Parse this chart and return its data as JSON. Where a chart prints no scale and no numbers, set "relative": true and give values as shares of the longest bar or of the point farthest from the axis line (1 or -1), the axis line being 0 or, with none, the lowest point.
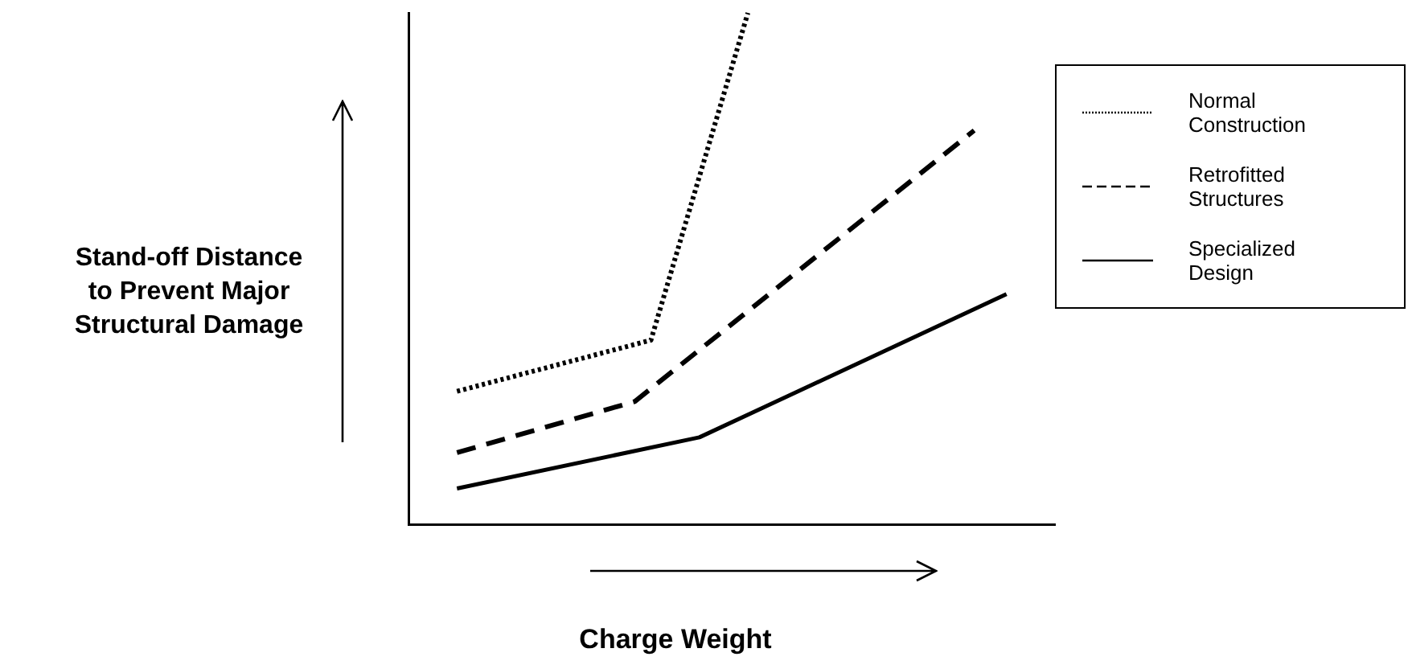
{
  "chart_data": {
    "type": "line",
    "relative": true,
    "xlabel": "Charge Weight",
    "ylabel": "Stand-off Distance to Prevent Major Structural Damage",
    "ylim": [
      0,
      1
    ],
    "grid": false,
    "legend": "right",
    "marker": "none",
    "categories": [
      null,
      null,
      null,
      null,
      null,
      null,
      null,
      null,
      null,
      null,
      null,
      null,
      null,
      null,
      null,
      null,
      null,
      null,
      null,
      null,
      null,
      null,
      null,
      null,
      null,
      null,
      null,
      null,
      null,
      null,
      null,
      null,
      null,
      null,
      null,
      null,
      null,
      null,
      null,
      null,
      null
    ],
    "series": [
      {
        "name": "Normal Construction",
        "color": "#000000",
        "line_style": "dotted",
        "values": [
          null,
          null,
          null,
          0.26,
          null,
          null,
          null,
          null,
          null,
          null,
          null,
          null,
          null,
          null,
          null,
          0.36,
          null,
          null,
          null,
          null,
          null,
          1,
          null,
          null,
          null,
          null,
          null,
          null,
          null,
          null,
          null,
          null,
          null,
          null,
          null,
          null,
          null,
          null,
          null,
          null,
          null
        ]
      },
      {
        "name": "Retrofitted Structures",
        "color": "#000000",
        "line_style": "dashed",
        "values": [
          null,
          null,
          null,
          0.14,
          null,
          null,
          null,
          null,
          null,
          null,
          null,
          null,
          null,
          null,
          0.24,
          null,
          null,
          null,
          null,
          null,
          null,
          null,
          null,
          null,
          null,
          null,
          null,
          null,
          null,
          null,
          null,
          null,
          null,
          null,
          null,
          0.77,
          null,
          null,
          null,
          null,
          null
        ]
      },
      {
        "name": "Specialized Design",
        "color": "#000000",
        "line_style": "solid",
        "values": [
          null,
          null,
          null,
          0.07,
          null,
          null,
          null,
          null,
          null,
          null,
          null,
          null,
          null,
          null,
          null,
          null,
          null,
          null,
          0.17,
          null,
          null,
          null,
          null,
          null,
          null,
          null,
          null,
          null,
          null,
          null,
          null,
          null,
          null,
          null,
          null,
          null,
          null,
          0.45,
          null,
          null,
          null
        ]
      }
    ]
  }
}
